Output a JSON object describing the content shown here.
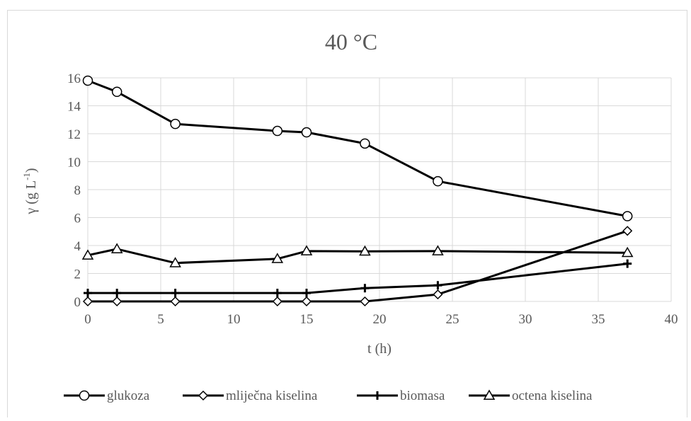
{
  "chart_data": {
    "type": "line",
    "title": "40 °C",
    "xlabel": "t (h)",
    "ylabel": "γ (g L-1)",
    "ylabel_base": "γ (g L",
    "ylabel_sup": "-1",
    "ylabel_end": ")",
    "xlim": [
      0,
      40
    ],
    "ylim": [
      0,
      16
    ],
    "xticks": [
      0,
      5,
      10,
      15,
      20,
      25,
      30,
      35,
      40
    ],
    "yticks": [
      0,
      2,
      4,
      6,
      8,
      10,
      12,
      14,
      16
    ],
    "grid": true,
    "legend_position": "bottom",
    "series": [
      {
        "name": "glukoza",
        "marker": "circle",
        "x": [
          0,
          2,
          6,
          13,
          15,
          19,
          24,
          37
        ],
        "y": [
          15.8,
          15.0,
          12.7,
          12.2,
          12.1,
          11.3,
          8.6,
          6.1
        ]
      },
      {
        "name": "mliječna kiselina",
        "marker": "diamond",
        "x": [
          0,
          2,
          6,
          13,
          15,
          19,
          24,
          37
        ],
        "y": [
          0.0,
          0.0,
          0.0,
          0.0,
          0.0,
          0.0,
          0.5,
          5.05
        ]
      },
      {
        "name": "biomasa",
        "marker": "plus",
        "x": [
          0,
          2,
          6,
          13,
          15,
          19,
          24,
          37
        ],
        "y": [
          0.6,
          0.6,
          0.6,
          0.6,
          0.6,
          0.95,
          1.15,
          2.7
        ]
      },
      {
        "name": "octena kiselina",
        "marker": "triangle",
        "x": [
          0,
          2,
          6,
          13,
          15,
          19,
          24,
          37
        ],
        "y": [
          3.3,
          3.75,
          2.75,
          3.05,
          3.6,
          3.58,
          3.6,
          3.48
        ]
      }
    ],
    "colors": {
      "line": "#000000",
      "grid": "#d9d9d9",
      "text": "#595959",
      "border": "#d9d9d9"
    }
  }
}
